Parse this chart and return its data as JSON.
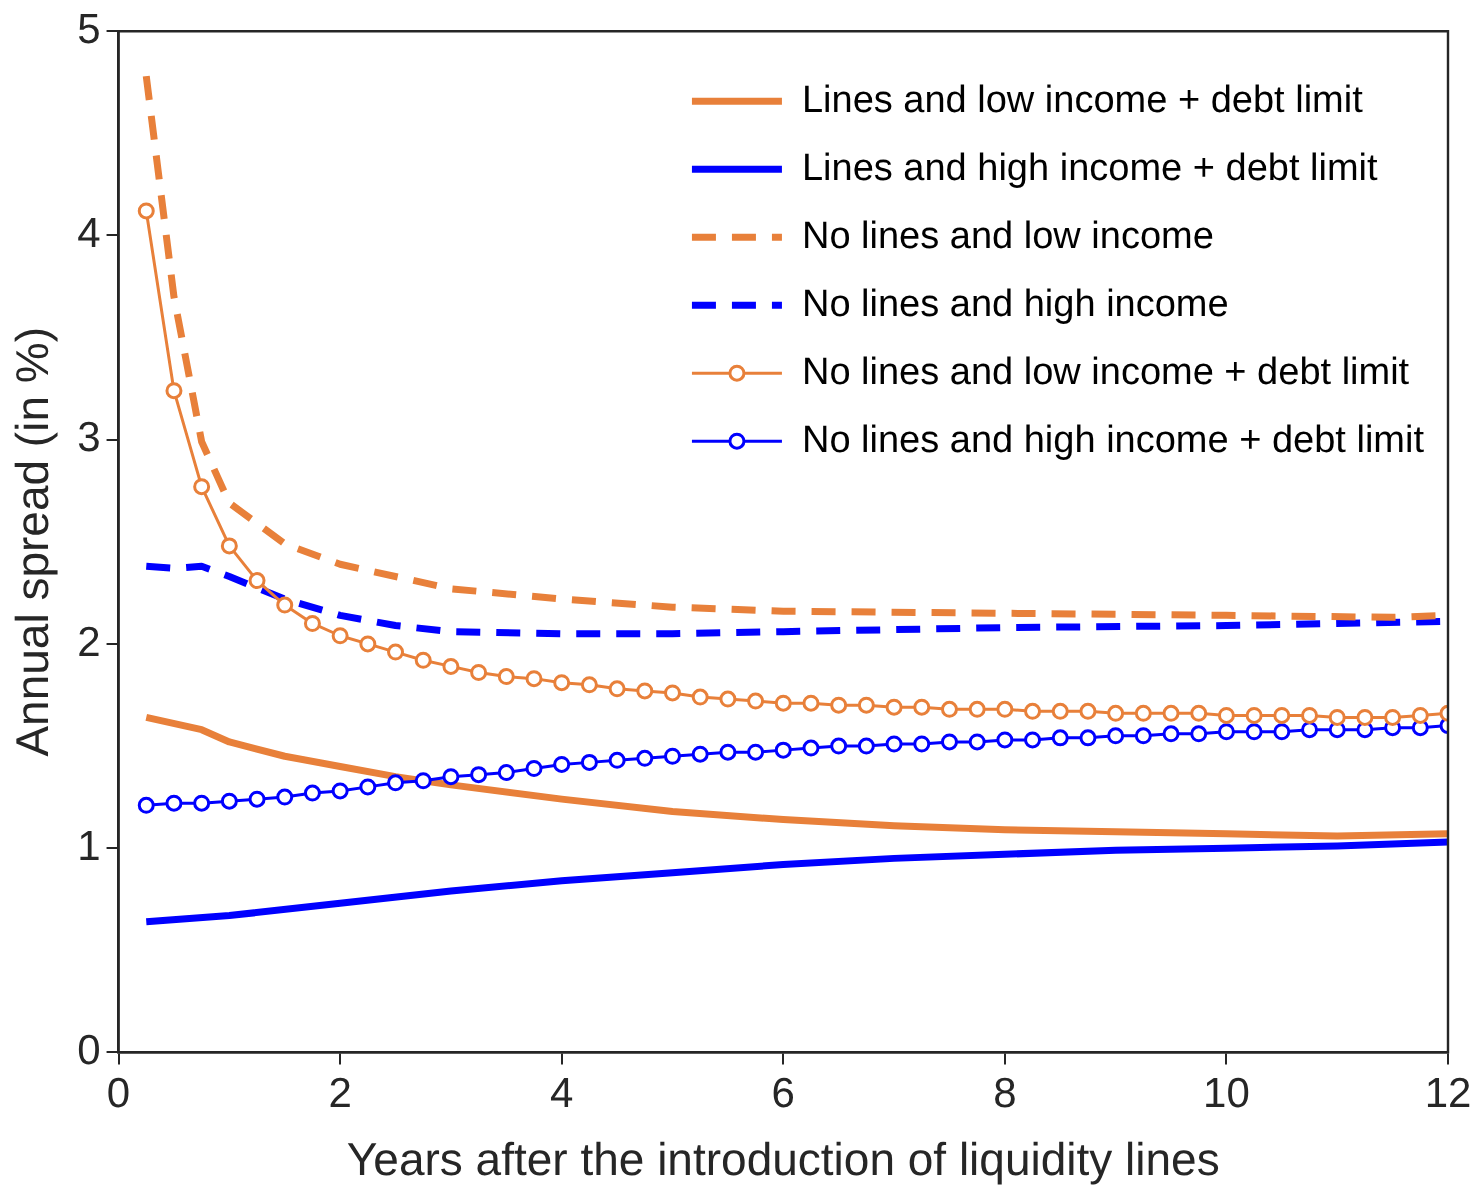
{
  "chart_data": {
    "type": "line",
    "xlabel": "Years after the introduction of liquidity lines",
    "ylabel": "Annual spread (in %)",
    "xlim": [
      0,
      12
    ],
    "xticks": [
      0,
      2,
      4,
      6,
      8,
      10,
      12
    ],
    "ylim": [
      0,
      5
    ],
    "yticks": [
      0,
      1,
      2,
      3,
      4,
      5
    ],
    "grid": false,
    "legend": "top right",
    "series": [
      {
        "name": "Lines and low income + debt limit",
        "color": "#e8803a",
        "line_style": "solid",
        "marker": "none",
        "x": [
          0.25,
          0.75,
          1,
          1.5,
          2,
          2.5,
          3,
          4,
          5,
          6,
          7,
          8,
          9,
          10,
          11,
          12
        ],
        "values": [
          1.64,
          1.58,
          1.52,
          1.45,
          1.4,
          1.35,
          1.31,
          1.24,
          1.18,
          1.14,
          1.11,
          1.09,
          1.08,
          1.07,
          1.06,
          1.07
        ]
      },
      {
        "name": "Lines and high income + debt limit",
        "color": "#0000ff",
        "line_style": "solid",
        "marker": "none",
        "x": [
          0.25,
          1,
          2,
          3,
          4,
          5,
          6,
          7,
          8,
          9,
          10,
          11,
          12
        ],
        "values": [
          0.64,
          0.67,
          0.73,
          0.79,
          0.84,
          0.88,
          0.92,
          0.95,
          0.97,
          0.99,
          1.0,
          1.01,
          1.03
        ]
      },
      {
        "name": "No lines and low income",
        "color": "#e8803a",
        "line_style": "dashed",
        "marker": "none",
        "x": [
          0.25,
          0.5,
          0.75,
          1,
          1.5,
          2,
          3,
          4,
          5,
          6,
          8,
          10,
          11.5,
          12
        ],
        "values": [
          4.78,
          3.7,
          2.99,
          2.69,
          2.49,
          2.39,
          2.27,
          2.22,
          2.18,
          2.16,
          2.15,
          2.14,
          2.13,
          2.14
        ]
      },
      {
        "name": "No lines and high income",
        "color": "#0000ff",
        "line_style": "dashed",
        "marker": "none",
        "x": [
          0.25,
          0.5,
          0.75,
          1,
          1.5,
          2,
          2.5,
          3,
          4,
          5,
          6,
          8,
          10,
          12
        ],
        "values": [
          2.38,
          2.37,
          2.38,
          2.33,
          2.22,
          2.14,
          2.09,
          2.06,
          2.05,
          2.05,
          2.06,
          2.08,
          2.09,
          2.11
        ]
      },
      {
        "name": "No lines and low income + debt limit",
        "color": "#e8803a",
        "line_style": "solid",
        "marker": "circle",
        "x": [
          0.25,
          0.5,
          0.75,
          1,
          1.25,
          1.5,
          1.75,
          2,
          2.25,
          2.5,
          2.75,
          3,
          3.25,
          3.5,
          3.75,
          4,
          4.25,
          4.5,
          4.75,
          5,
          5.25,
          5.5,
          5.75,
          6,
          6.25,
          6.5,
          6.75,
          7,
          7.25,
          7.5,
          7.75,
          8,
          8.25,
          8.5,
          8.75,
          9,
          9.25,
          9.5,
          9.75,
          10,
          10.25,
          10.5,
          10.75,
          11,
          11.25,
          11.5,
          11.75,
          12
        ],
        "values": [
          4.12,
          3.24,
          2.77,
          2.48,
          2.31,
          2.19,
          2.1,
          2.04,
          2.0,
          1.96,
          1.92,
          1.89,
          1.86,
          1.84,
          1.83,
          1.81,
          1.8,
          1.78,
          1.77,
          1.76,
          1.74,
          1.73,
          1.72,
          1.71,
          1.71,
          1.7,
          1.7,
          1.69,
          1.69,
          1.68,
          1.68,
          1.68,
          1.67,
          1.67,
          1.67,
          1.66,
          1.66,
          1.66,
          1.66,
          1.65,
          1.65,
          1.65,
          1.65,
          1.64,
          1.64,
          1.64,
          1.65,
          1.66
        ]
      },
      {
        "name": "No lines and high income + debt limit",
        "color": "#0000ff",
        "line_style": "solid",
        "marker": "circle",
        "x": [
          0.25,
          0.5,
          0.75,
          1,
          1.25,
          1.5,
          1.75,
          2,
          2.25,
          2.5,
          2.75,
          3,
          3.25,
          3.5,
          3.75,
          4,
          4.25,
          4.5,
          4.75,
          5,
          5.25,
          5.5,
          5.75,
          6,
          6.25,
          6.5,
          6.75,
          7,
          7.25,
          7.5,
          7.75,
          8,
          8.25,
          8.5,
          8.75,
          9,
          9.25,
          9.5,
          9.75,
          10,
          10.25,
          10.5,
          10.75,
          11,
          11.25,
          11.5,
          11.75,
          12
        ],
        "values": [
          1.21,
          1.22,
          1.22,
          1.23,
          1.24,
          1.25,
          1.27,
          1.28,
          1.3,
          1.32,
          1.33,
          1.35,
          1.36,
          1.37,
          1.39,
          1.41,
          1.42,
          1.43,
          1.44,
          1.45,
          1.46,
          1.47,
          1.47,
          1.48,
          1.49,
          1.5,
          1.5,
          1.51,
          1.51,
          1.52,
          1.52,
          1.53,
          1.53,
          1.54,
          1.54,
          1.55,
          1.55,
          1.56,
          1.56,
          1.57,
          1.57,
          1.57,
          1.58,
          1.58,
          1.58,
          1.59,
          1.59,
          1.6
        ]
      }
    ]
  }
}
